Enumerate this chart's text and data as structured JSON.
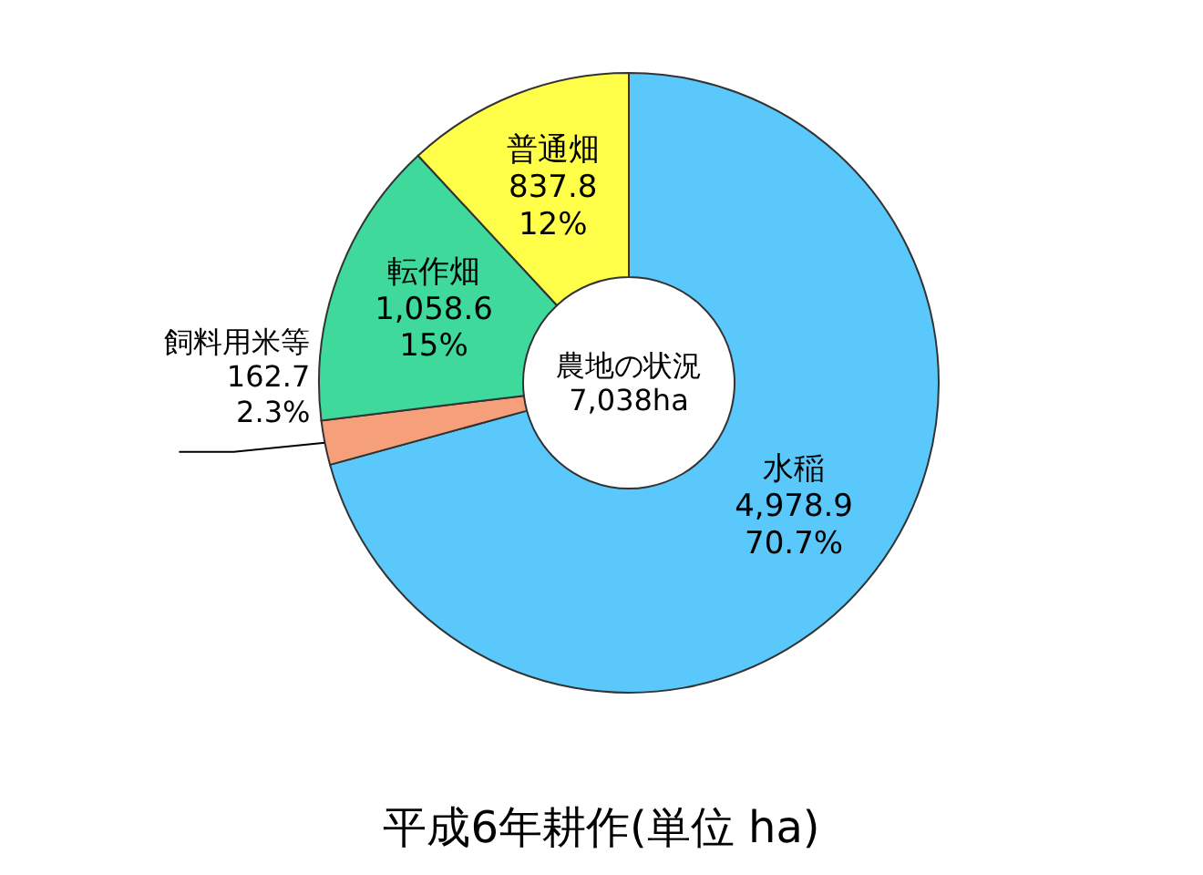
{
  "chart_data": {
    "type": "donut",
    "title": "平成6年耕作(単位 ha)",
    "categories": [
      "水稲",
      "飼料用米等",
      "転作畑",
      "普通畑"
    ],
    "values": [
      4978.9,
      162.7,
      1058.6,
      837.8
    ],
    "colors": [
      "#5ac8fa",
      "#f5a07a",
      "#3fd99c",
      "#ffff4a"
    ],
    "value_labels": [
      "4,978.9\n70.7%",
      "162.7\n2.3%",
      "1,058.6\n15%",
      "837.8\n12%"
    ],
    "annotations": [
      "農地の状況",
      "7,038ha"
    ]
  }
}
